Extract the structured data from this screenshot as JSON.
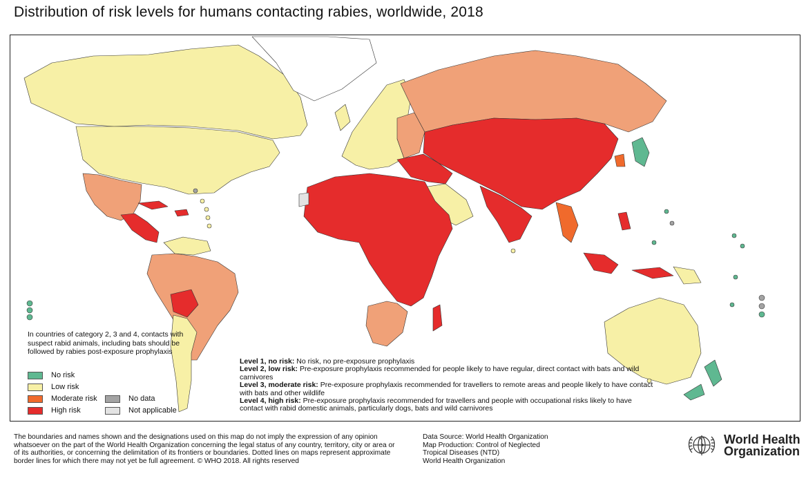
{
  "title": "Distribution of risk levels for humans contacting rabies, worldwide, 2018",
  "colors": {
    "no_risk": "#5fb891",
    "low_risk": "#f7f0a6",
    "moderate_risk": "#f06a2c",
    "high_risk": "#e52c2c",
    "no_data": "#a3a3a3",
    "not_applicable": "#e3e3e3",
    "russia_region": "#f0a178",
    "south_america_region": "#f0a178"
  },
  "category_note": "In countries of category 2, 3 and 4, contacts with suspect rabid animals, including bats should be followed by rabies post-exposure prophylaxis",
  "legend": {
    "no_risk": "No risk",
    "low_risk": "Low risk",
    "moderate_risk": "Moderate risk",
    "high_risk": "High risk",
    "no_data": "No data",
    "not_applicable": "Not applicable"
  },
  "levels": [
    {
      "heading": "Level 1, no risk:",
      "text": "No risk, no pre-exposure prophylaxis"
    },
    {
      "heading": "Level 2, low risk:",
      "text": "Pre-exposure prophylaxis recommended for people likely to have regular, direct contact with bats and wild carnivores"
    },
    {
      "heading": "Level 3, moderate risk:",
      "text": "Pre-exposure prophylaxis recommended for travellers to remote areas and people likely to have contact with bats and other wildlife"
    },
    {
      "heading": "Level 4, high risk:",
      "text": "Pre-exposure prophylaxis recommended for travellers and people with occupational risks likely to have contact with rabid domestic animals, particularly dogs, bats and wild carnivores"
    }
  ],
  "footer": {
    "disclaimer": "The boundaries and names shown and the designations used on this map do not imply the expression of any opinion whatsoever on the part of the World Health Organization concerning the legal status of any country, territory, city or area or of its authorities, or concerning the delimitation of its frontiers or boundaries. Dotted lines on maps represent approximate border lines for which there may not yet be full agreement. © WHO 2018. All rights reserved",
    "source_lines": [
      "Data Source: World Health Organization",
      "Map Production: Control of Neglected",
      "Tropical Diseases (NTD)",
      "World Health Organization"
    ],
    "who_line1": "World Health",
    "who_line2": "Organization"
  }
}
